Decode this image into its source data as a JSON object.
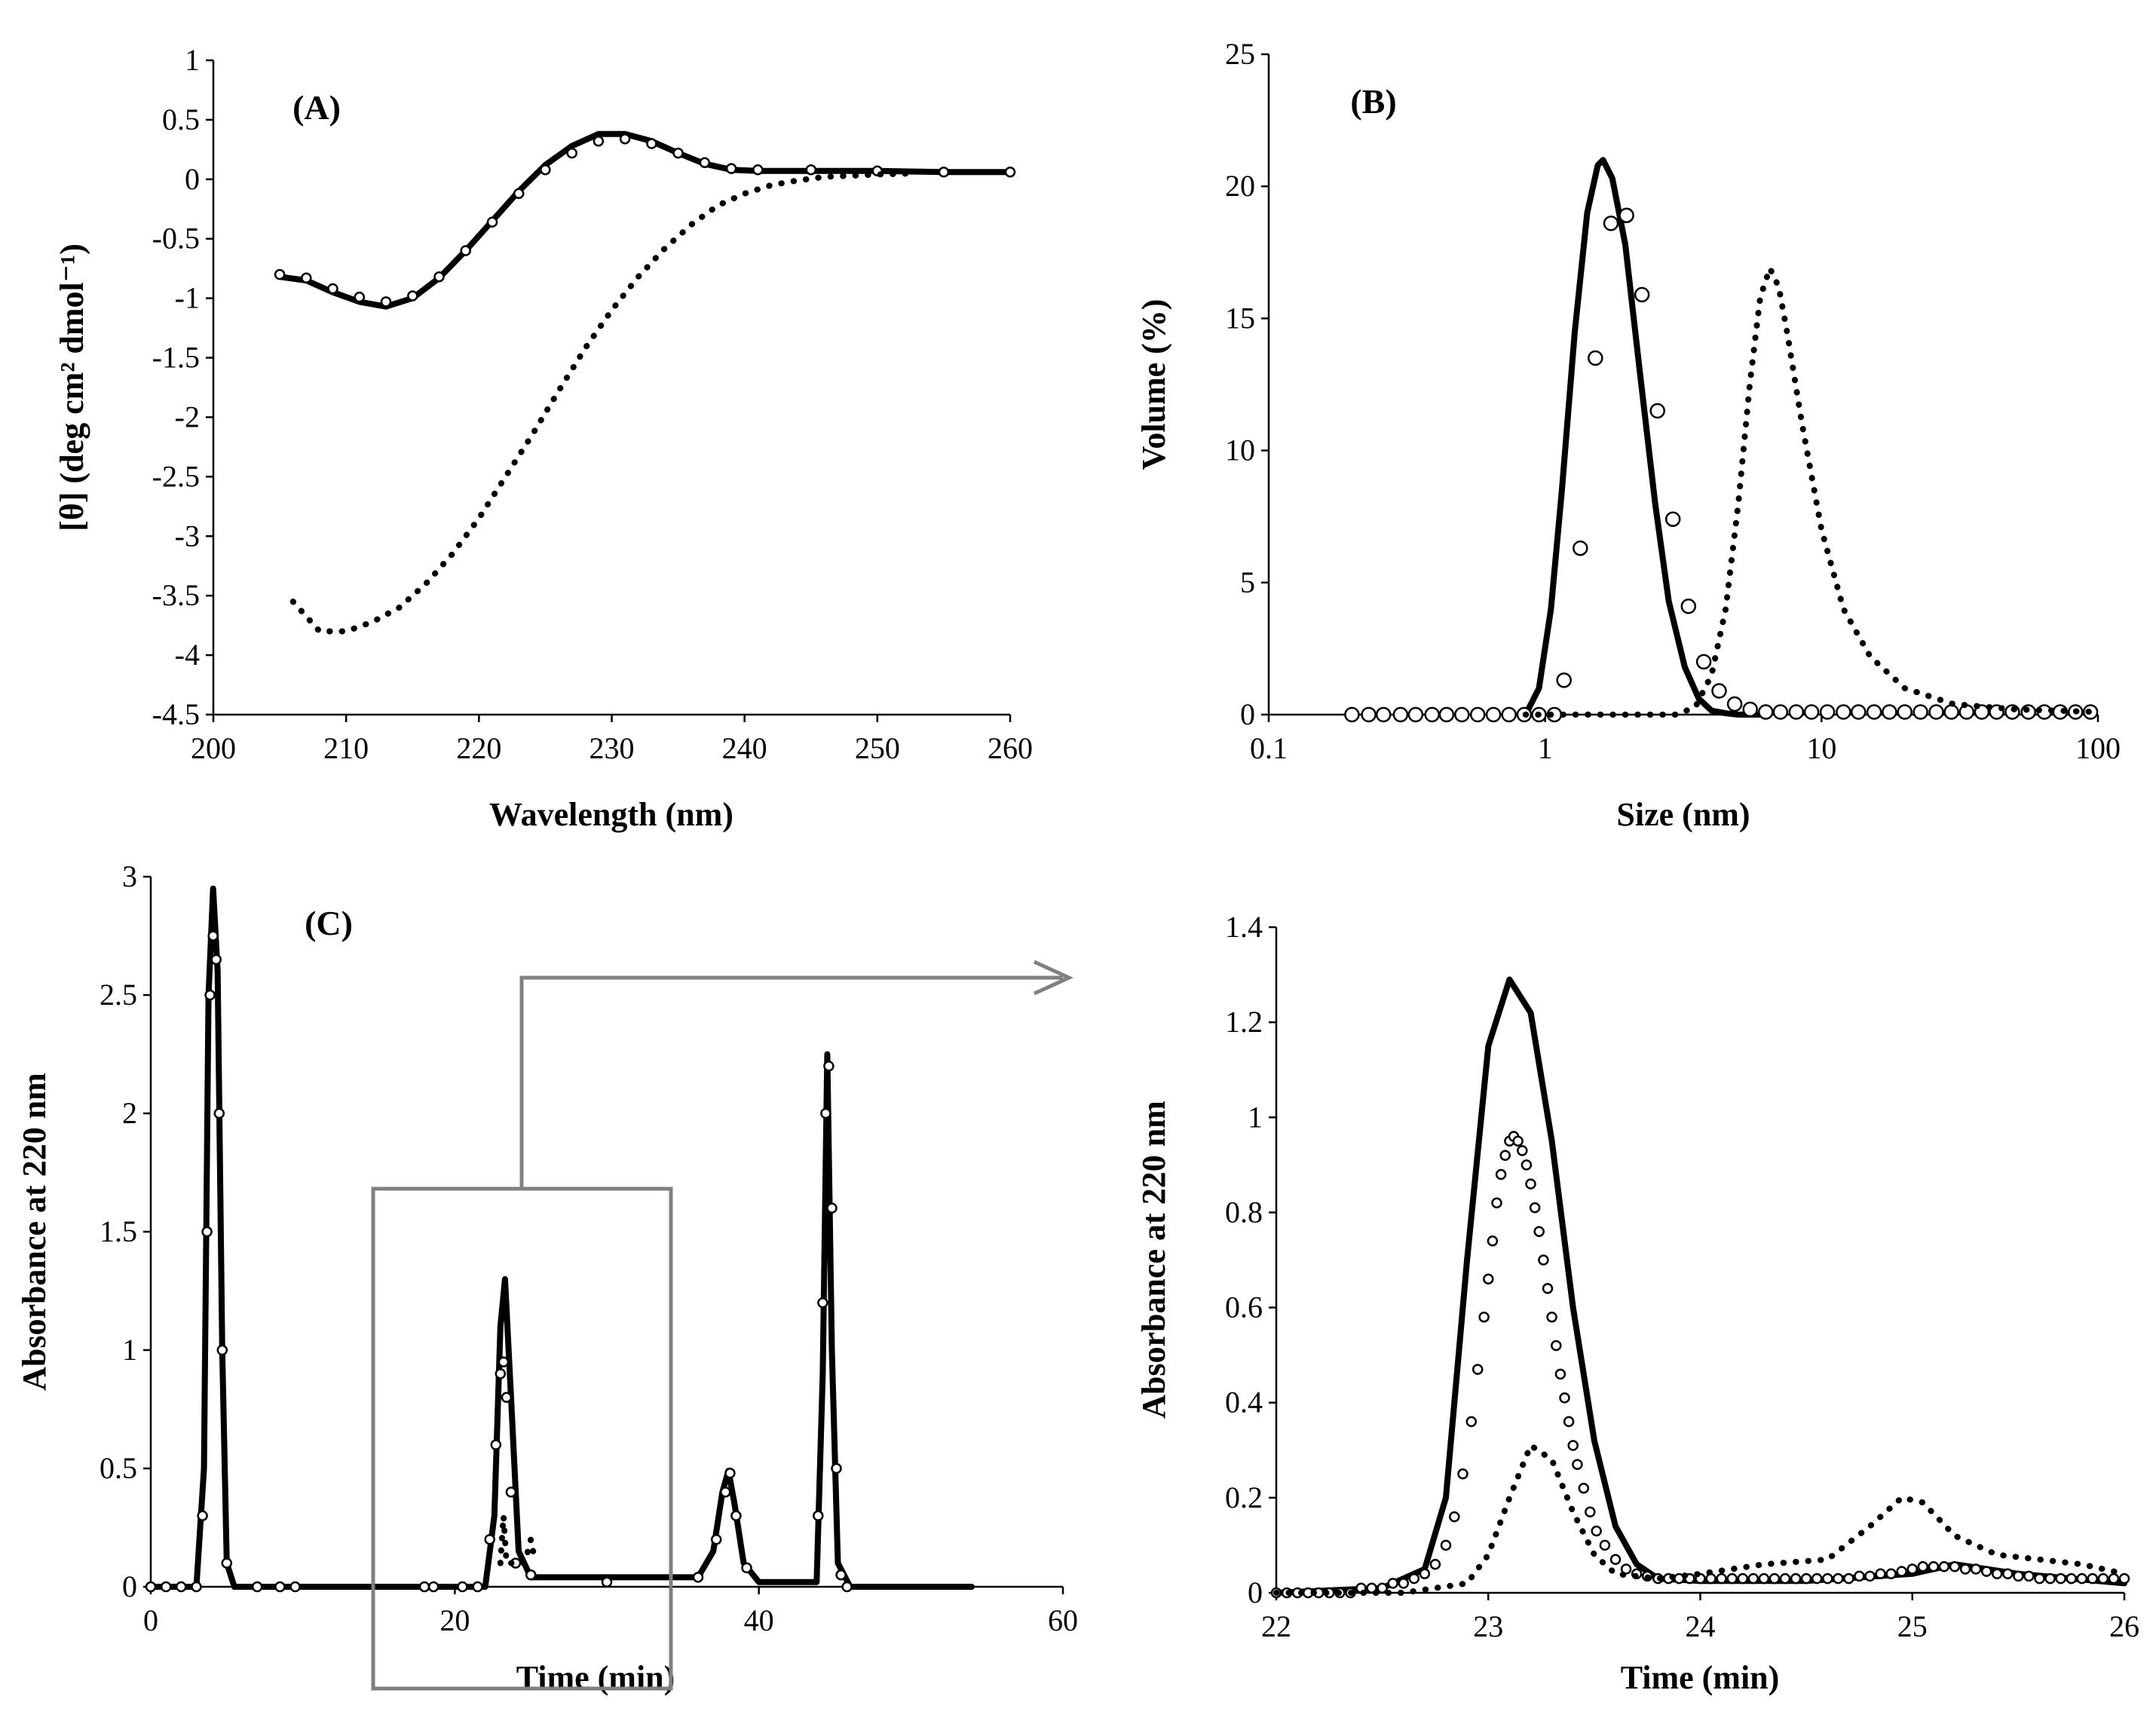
{
  "colors": {
    "ink": "#000000",
    "frame": "#808080",
    "background": "#ffffff"
  },
  "chart_data": [
    {
      "id": "A",
      "type": "line",
      "panel_label": "(A)",
      "xlabel": "Wavelength (nm)",
      "ylabel": "[θ] (deg cm² dmol⁻¹)",
      "xlim": [
        200,
        260
      ],
      "ylim": [
        -4.5,
        1
      ],
      "xticks": [
        200,
        210,
        220,
        230,
        240,
        250,
        260
      ],
      "yticks": [
        1,
        0.5,
        0,
        -0.5,
        -1,
        -1.5,
        -2,
        -2.5,
        -3,
        -3.5,
        -4,
        -4.5
      ],
      "series": [
        {
          "name": "solid",
          "style": "solid",
          "x": [
            205,
            207,
            209,
            211,
            213,
            215,
            217,
            219,
            221,
            223,
            225,
            227,
            229,
            231,
            233,
            235,
            237,
            239,
            241,
            245,
            250,
            255,
            260
          ],
          "y": [
            -0.82,
            -0.85,
            -0.95,
            -1.03,
            -1.07,
            -1.0,
            -0.83,
            -0.6,
            -0.35,
            -0.1,
            0.12,
            0.28,
            0.38,
            0.38,
            0.32,
            0.22,
            0.13,
            0.08,
            0.07,
            0.07,
            0.07,
            0.06,
            0.06
          ]
        },
        {
          "name": "open-circles",
          "style": "circles",
          "x": [
            205,
            207,
            209,
            211,
            213,
            215,
            217,
            219,
            221,
            223,
            225,
            227,
            229,
            231,
            233,
            235,
            237,
            239,
            241,
            245,
            250,
            255,
            260
          ],
          "y": [
            -0.8,
            -0.83,
            -0.92,
            -0.99,
            -1.03,
            -0.98,
            -0.82,
            -0.6,
            -0.36,
            -0.12,
            0.08,
            0.22,
            0.32,
            0.34,
            0.3,
            0.22,
            0.14,
            0.09,
            0.08,
            0.08,
            0.07,
            0.06,
            0.06
          ]
        },
        {
          "name": "dotted",
          "style": "dotted",
          "x": [
            206,
            208,
            210,
            212,
            214,
            216,
            218,
            220,
            222,
            224,
            226,
            228,
            230,
            232,
            234,
            236,
            238,
            240,
            242,
            244,
            246,
            248,
            250,
            253
          ],
          "y": [
            -3.55,
            -3.8,
            -3.8,
            -3.72,
            -3.6,
            -3.4,
            -3.15,
            -2.85,
            -2.5,
            -2.15,
            -1.78,
            -1.42,
            -1.1,
            -0.82,
            -0.58,
            -0.38,
            -0.22,
            -0.12,
            -0.05,
            -0.01,
            0.02,
            0.03,
            0.04,
            0.05
          ]
        }
      ]
    },
    {
      "id": "B",
      "type": "line",
      "panel_label": "(B)",
      "xlabel": "Size (nm)",
      "ylabel": "Volume (%)",
      "xscale": "log",
      "xlim": [
        0.1,
        100
      ],
      "ylim": [
        0,
        25
      ],
      "xticks": [
        0.1,
        1,
        10,
        100
      ],
      "xticklabels": [
        "0.1",
        "1",
        "10",
        "100"
      ],
      "yticks": [
        0,
        5,
        10,
        15,
        20,
        25
      ],
      "series": [
        {
          "name": "solid",
          "style": "solid",
          "x": [
            0.85,
            0.95,
            1.05,
            1.15,
            1.28,
            1.42,
            1.55,
            1.62,
            1.75,
            1.95,
            2.2,
            2.5,
            2.8,
            3.2,
            3.6,
            4.0,
            4.5,
            5.0,
            6.0
          ],
          "y": [
            0,
            1.0,
            4.0,
            8.5,
            14.5,
            19.0,
            20.8,
            21.0,
            20.3,
            17.8,
            13.0,
            8.0,
            4.3,
            1.8,
            0.6,
            0.15,
            0.05,
            0,
            0
          ]
        },
        {
          "name": "open-circles",
          "style": "circles",
          "x": [
            0.2,
            0.23,
            0.26,
            0.3,
            0.34,
            0.39,
            0.44,
            0.5,
            0.57,
            0.65,
            0.74,
            0.84,
            0.95,
            1.08,
            1.17,
            1.34,
            1.52,
            1.73,
            1.97,
            2.24,
            2.55,
            2.9,
            3.3,
            3.75,
            4.26,
            4.85,
            5.52,
            6.28,
            7.1,
            8.1,
            9.2,
            10.5,
            12,
            13.6,
            15.5,
            17.6,
            20,
            22.8,
            26,
            29.5,
            33.5,
            38,
            43,
            49,
            56,
            64,
            73,
            83,
            94
          ],
          "y": [
            0,
            0,
            0,
            0,
            0,
            0,
            0,
            0,
            0,
            0,
            0,
            0,
            0,
            0,
            1.3,
            6.3,
            13.5,
            18.6,
            18.9,
            15.9,
            11.5,
            7.4,
            4.1,
            2.0,
            0.9,
            0.4,
            0.2,
            0.1,
            0.1,
            0.1,
            0.1,
            0.1,
            0.1,
            0.1,
            0.1,
            0.1,
            0.1,
            0.1,
            0.1,
            0.1,
            0.1,
            0.1,
            0.1,
            0.1,
            0.1,
            0.1,
            0.1,
            0.1,
            0.1
          ]
        },
        {
          "name": "dotted",
          "style": "dotted",
          "x": [
            0.85,
            1.2,
            2,
            3,
            3.5,
            4.0,
            4.5,
            5.0,
            5.5,
            6.0,
            6.5,
            7.0,
            7.5,
            8.5,
            10,
            12,
            15,
            20,
            30,
            50,
            100
          ],
          "y": [
            0,
            0,
            0,
            0,
            0.3,
            1.5,
            4.0,
            8.0,
            12.5,
            15.8,
            16.9,
            16.2,
            14.5,
            11.0,
            7.0,
            4.0,
            2.2,
            1.0,
            0.4,
            0.2,
            0.1
          ]
        }
      ]
    },
    {
      "id": "C",
      "type": "line",
      "panel_label": "(C)",
      "xlabel": "Time (min)",
      "ylabel": "Absorbance at 220 nm",
      "xlim": [
        0,
        60
      ],
      "ylim": [
        0,
        3
      ],
      "xticks": [
        0,
        20,
        40,
        60
      ],
      "yticks": [
        0,
        0.5,
        1,
        1.5,
        2,
        2.5,
        3
      ],
      "annotation": "gray box marks 15–35 min region, expanded in right panel",
      "series": [
        {
          "name": "solid",
          "style": "solid",
          "x": [
            0,
            3.0,
            3.5,
            3.8,
            4.1,
            4.4,
            4.7,
            5.0,
            5.5,
            22.0,
            22.6,
            23.0,
            23.3,
            23.7,
            24.2,
            25.0,
            36.0,
            37.0,
            37.6,
            38.0,
            38.4,
            39.0,
            40.0,
            43.8,
            44.2,
            44.5,
            44.8,
            45.2,
            46.0,
            54.0
          ],
          "y": [
            0,
            0,
            0.5,
            2.5,
            2.95,
            2.6,
            1.0,
            0.1,
            0,
            0,
            0.3,
            1.1,
            1.3,
            0.8,
            0.15,
            0.04,
            0.04,
            0.15,
            0.4,
            0.49,
            0.35,
            0.1,
            0.02,
            0.02,
            0.9,
            2.25,
            1.0,
            0.1,
            0,
            0
          ]
        },
        {
          "name": "open-circles",
          "style": "circles",
          "x": [
            0,
            1,
            2,
            3,
            3.4,
            3.7,
            3.9,
            4.1,
            4.3,
            4.5,
            4.7,
            5.0,
            7,
            8.5,
            9.5,
            18,
            18.6,
            20.5,
            21.5,
            22.3,
            22.7,
            23.0,
            23.2,
            23.4,
            23.7,
            24.0,
            25.0,
            30,
            36.0,
            37.2,
            37.8,
            38.1,
            38.5,
            39.2,
            43.9,
            44.2,
            44.4,
            44.6,
            44.8,
            45.1,
            45.4,
            45.8
          ],
          "y": [
            0,
            0,
            0,
            0,
            0.3,
            1.5,
            2.5,
            2.75,
            2.65,
            2.0,
            1.0,
            0.1,
            0,
            0,
            0,
            0,
            0,
            0,
            0,
            0.2,
            0.6,
            0.9,
            0.95,
            0.8,
            0.4,
            0.1,
            0.05,
            0.02,
            0.04,
            0.2,
            0.4,
            0.48,
            0.3,
            0.08,
            0.3,
            1.2,
            2.0,
            2.2,
            1.6,
            0.5,
            0.05,
            0
          ]
        },
        {
          "name": "dotted",
          "style": "dotted",
          "x": [
            23.0,
            23.2,
            23.4,
            24.6,
            25.0,
            25.3
          ],
          "y": [
            0.1,
            0.3,
            0.1,
            0.1,
            0.2,
            0.1
          ]
        }
      ]
    },
    {
      "id": "C-zoom",
      "type": "line",
      "panel_label": "",
      "xlabel": "Time (min)",
      "ylabel": "Absorbance at 220 nm",
      "xlim": [
        22,
        26
      ],
      "ylim": [
        0,
        1.4
      ],
      "xticks": [
        22,
        23,
        24,
        25,
        26
      ],
      "yticks": [
        0,
        0.2,
        0.4,
        0.6,
        0.8,
        1,
        1.2,
        1.4
      ],
      "series": [
        {
          "name": "solid",
          "style": "solid",
          "x": [
            22.0,
            22.5,
            22.7,
            22.8,
            22.9,
            23.0,
            23.1,
            23.2,
            23.3,
            23.4,
            23.5,
            23.6,
            23.7,
            23.8,
            24.0,
            24.5,
            25.0,
            25.2,
            25.5,
            26.0
          ],
          "y": [
            0,
            0.01,
            0.05,
            0.2,
            0.7,
            1.15,
            1.29,
            1.22,
            0.95,
            0.6,
            0.32,
            0.14,
            0.06,
            0.03,
            0.025,
            0.025,
            0.04,
            0.06,
            0.04,
            0.02
          ]
        },
        {
          "name": "open-circles",
          "style": "circles",
          "x": [
            22.0,
            22.05,
            22.1,
            22.15,
            22.2,
            22.25,
            22.3,
            22.35,
            22.4,
            22.45,
            22.5,
            22.55,
            22.6,
            22.65,
            22.7,
            22.75,
            22.8,
            22.84,
            22.88,
            22.92,
            22.95,
            22.98,
            23.0,
            23.02,
            23.04,
            23.06,
            23.08,
            23.1,
            23.12,
            23.14,
            23.16,
            23.18,
            23.2,
            23.22,
            23.24,
            23.26,
            23.28,
            23.3,
            23.32,
            23.34,
            23.36,
            23.38,
            23.4,
            23.42,
            23.45,
            23.48,
            23.51,
            23.55,
            23.6,
            23.65,
            23.7,
            23.75,
            23.8,
            23.85,
            23.9,
            23.95,
            24.0,
            24.05,
            24.1,
            24.15,
            24.2,
            24.25,
            24.3,
            24.35,
            24.4,
            24.45,
            24.5,
            24.55,
            24.6,
            24.65,
            24.7,
            24.75,
            24.8,
            24.85,
            24.9,
            24.95,
            25.0,
            25.05,
            25.1,
            25.15,
            25.2,
            25.25,
            25.3,
            25.35,
            25.4,
            25.45,
            25.5,
            25.55,
            25.6,
            25.65,
            25.7,
            25.75,
            25.8,
            25.85,
            25.9,
            25.95,
            26.0
          ],
          "y": [
            0,
            0,
            0,
            0,
            0,
            0,
            0,
            0,
            0.01,
            0.01,
            0.01,
            0.02,
            0.02,
            0.03,
            0.04,
            0.06,
            0.1,
            0.16,
            0.25,
            0.36,
            0.47,
            0.58,
            0.66,
            0.74,
            0.82,
            0.88,
            0.92,
            0.95,
            0.96,
            0.95,
            0.93,
            0.9,
            0.86,
            0.81,
            0.76,
            0.7,
            0.64,
            0.58,
            0.52,
            0.46,
            0.41,
            0.36,
            0.31,
            0.27,
            0.22,
            0.17,
            0.13,
            0.1,
            0.07,
            0.05,
            0.04,
            0.035,
            0.03,
            0.03,
            0.03,
            0.03,
            0.03,
            0.03,
            0.03,
            0.03,
            0.03,
            0.03,
            0.03,
            0.03,
            0.03,
            0.03,
            0.03,
            0.03,
            0.03,
            0.03,
            0.03,
            0.035,
            0.035,
            0.04,
            0.04,
            0.045,
            0.05,
            0.055,
            0.055,
            0.055,
            0.055,
            0.05,
            0.05,
            0.045,
            0.04,
            0.04,
            0.035,
            0.035,
            0.03,
            0.03,
            0.03,
            0.03,
            0.03,
            0.03,
            0.03,
            0.03,
            0.03
          ]
        },
        {
          "name": "dotted",
          "style": "dotted",
          "x": [
            22.0,
            22.6,
            22.9,
            23.0,
            23.1,
            23.2,
            23.3,
            23.4,
            23.5,
            23.6,
            23.8,
            24.0,
            24.3,
            24.6,
            24.8,
            24.95,
            25.05,
            25.2,
            25.4,
            25.6,
            25.8,
            26.0
          ],
          "y": [
            0,
            0,
            0.02,
            0.08,
            0.2,
            0.31,
            0.28,
            0.17,
            0.08,
            0.04,
            0.03,
            0.04,
            0.06,
            0.07,
            0.14,
            0.2,
            0.19,
            0.12,
            0.08,
            0.07,
            0.06,
            0.04
          ]
        }
      ]
    }
  ]
}
